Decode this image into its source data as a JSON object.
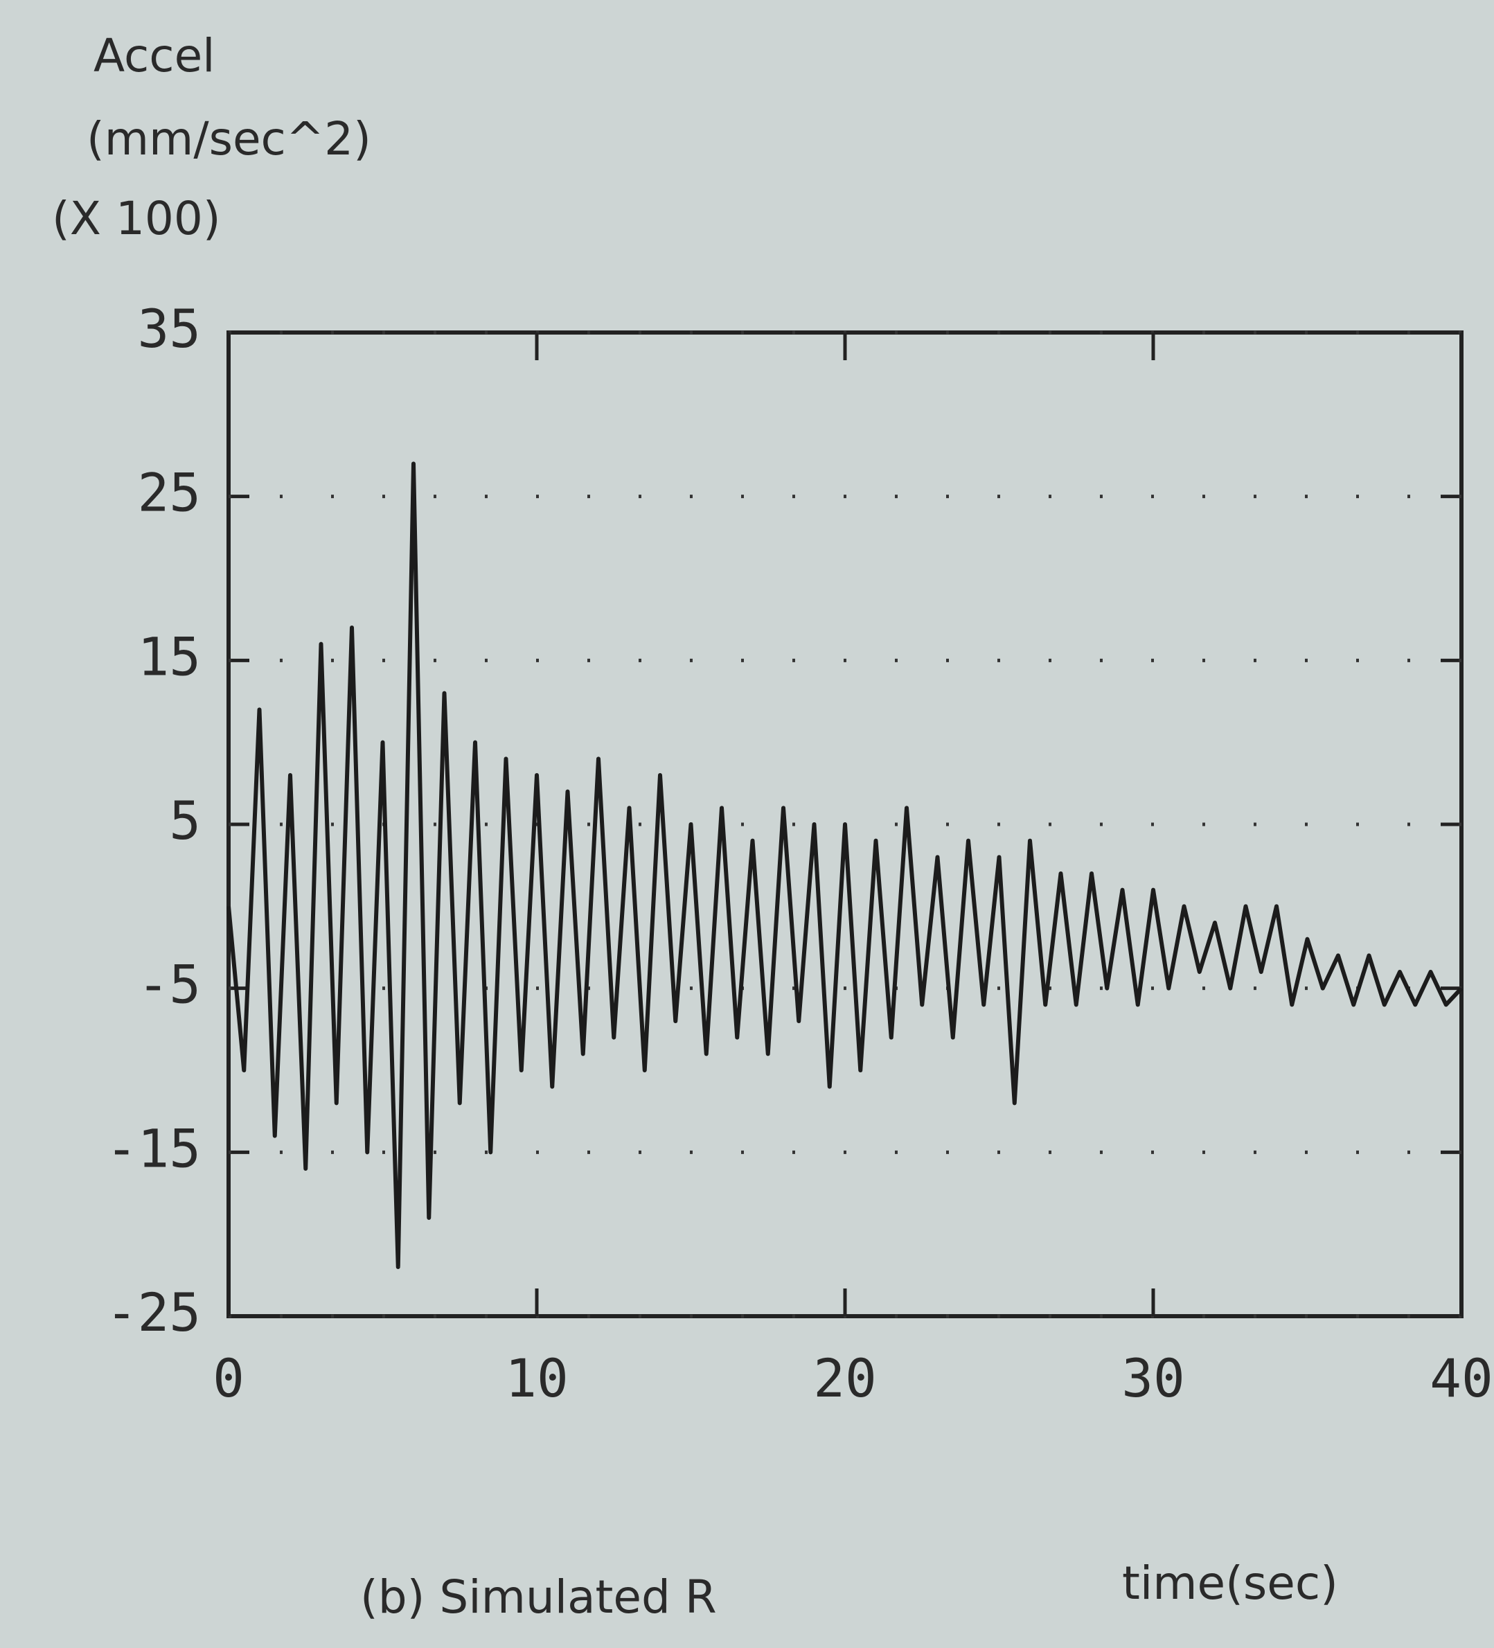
{
  "chart_data": {
    "type": "line",
    "ylabel_lines": [
      "Accel",
      "(mm/sec^2)",
      "(X 100)"
    ],
    "xlabel": "time(sec)",
    "caption": "(b) Simulated R",
    "x": [
      0,
      0.5,
      1,
      1.5,
      2,
      2.5,
      3,
      3.5,
      4,
      4.5,
      5,
      5.5,
      6,
      6.5,
      7,
      7.5,
      8,
      8.5,
      9,
      9.5,
      10,
      10.5,
      11,
      11.5,
      12,
      12.5,
      13,
      13.5,
      14,
      14.5,
      15,
      15.5,
      16,
      16.5,
      17,
      17.5,
      18,
      18.5,
      19,
      19.5,
      20,
      20.5,
      21,
      21.5,
      22,
      22.5,
      23,
      23.5,
      24,
      24.5,
      25,
      25.5,
      26,
      26.5,
      27,
      27.5,
      28,
      28.5,
      29,
      29.5,
      30,
      30.5,
      31,
      31.5,
      32,
      32.5,
      33,
      33.5,
      34,
      34.5,
      35,
      35.5,
      36,
      36.5,
      37,
      37.5,
      38,
      38.5,
      39,
      39.5,
      40
    ],
    "series": [
      {
        "color": "#1c1c1c",
        "values": [
          0,
          -10,
          12,
          -14,
          8,
          -16,
          16,
          -12,
          17,
          -15,
          10,
          -22,
          27,
          -19,
          13,
          -12,
          10,
          -15,
          9,
          -10,
          8,
          -11,
          7,
          -9,
          9,
          -8,
          6,
          -10,
          8,
          -7,
          5,
          -9,
          6,
          -8,
          4,
          -9,
          6,
          -7,
          5,
          -11,
          5,
          -10,
          4,
          -8,
          6,
          -6,
          3,
          -8,
          4,
          -6,
          3,
          -12,
          4,
          -6,
          2,
          -6,
          2,
          -5,
          1,
          -6,
          1,
          -5,
          0,
          -4,
          -1,
          -5,
          0,
          -4,
          0,
          -6,
          -2,
          -5,
          -3,
          -6,
          -3,
          -6,
          -4,
          -6,
          -4,
          -6,
          -5
        ]
      }
    ],
    "xlim": [
      0,
      40
    ],
    "xticks": [
      0,
      10,
      20,
      30,
      40
    ],
    "ylim": [
      -25,
      35
    ],
    "yticks": [
      -25,
      -15,
      -5,
      5,
      15,
      25,
      35
    ],
    "grid": true
  }
}
